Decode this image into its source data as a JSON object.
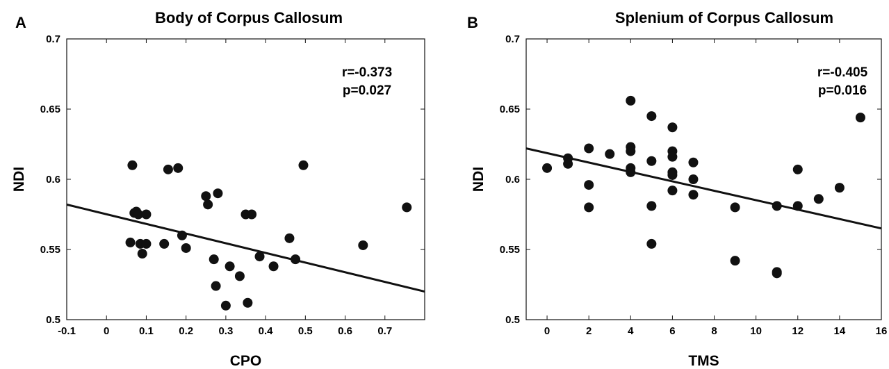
{
  "chart_data": [
    {
      "type": "scatter",
      "panel_label": "A",
      "title": "Body of Corpus Callosum",
      "xlabel": "CPO",
      "ylabel": "NDI",
      "xlim": [
        -0.1,
        0.8
      ],
      "ylim": [
        0.5,
        0.7
      ],
      "xticks": [
        "-0.1",
        "0",
        "0.1",
        "0.2",
        "0.3",
        "0.4",
        "0.5",
        "0.6",
        "0.7"
      ],
      "yticks": [
        "0.5",
        "0.55",
        "0.6",
        "0.65",
        "0.7"
      ],
      "annotation": [
        "r=-0.373",
        "p=0.027"
      ],
      "grid": false,
      "series": [
        {
          "points": [
            [
              0.065,
              0.61
            ],
            [
              0.07,
              0.576
            ],
            [
              0.075,
              0.577
            ],
            [
              0.08,
              0.575
            ],
            [
              0.1,
              0.575
            ],
            [
              0.06,
              0.555
            ],
            [
              0.085,
              0.554
            ],
            [
              0.1,
              0.554
            ],
            [
              0.09,
              0.547
            ],
            [
              0.145,
              0.554
            ],
            [
              0.155,
              0.607
            ],
            [
              0.18,
              0.608
            ],
            [
              0.19,
              0.56
            ],
            [
              0.2,
              0.551
            ],
            [
              0.25,
              0.588
            ],
            [
              0.255,
              0.582
            ],
            [
              0.28,
              0.59
            ],
            [
              0.27,
              0.543
            ],
            [
              0.275,
              0.524
            ],
            [
              0.31,
              0.538
            ],
            [
              0.3,
              0.51
            ],
            [
              0.335,
              0.531
            ],
            [
              0.35,
              0.575
            ],
            [
              0.365,
              0.575
            ],
            [
              0.355,
              0.512
            ],
            [
              0.385,
              0.545
            ],
            [
              0.42,
              0.538
            ],
            [
              0.46,
              0.558
            ],
            [
              0.475,
              0.543
            ],
            [
              0.495,
              0.61
            ],
            [
              0.645,
              0.553
            ],
            [
              0.755,
              0.58
            ]
          ]
        }
      ],
      "fit_line": [
        [
          -0.1,
          0.582
        ],
        [
          0.8,
          0.52
        ]
      ]
    },
    {
      "type": "scatter",
      "panel_label": "B",
      "title": "Splenium of Corpus Callosum",
      "xlabel": "TMS",
      "ylabel": "NDI",
      "xlim": [
        -1,
        16
      ],
      "ylim": [
        0.5,
        0.7
      ],
      "xticks": [
        "0",
        "2",
        "4",
        "6",
        "8",
        "10",
        "12",
        "14",
        "16"
      ],
      "yticks": [
        "0.5",
        "0.55",
        "0.6",
        "0.65",
        "0.7"
      ],
      "annotation": [
        "r=-0.405",
        "p=0.016"
      ],
      "grid": false,
      "series": [
        {
          "points": [
            [
              0,
              0.608
            ],
            [
              1,
              0.615
            ],
            [
              1,
              0.611
            ],
            [
              2,
              0.622
            ],
            [
              2,
              0.596
            ],
            [
              2,
              0.58
            ],
            [
              3,
              0.618
            ],
            [
              4,
              0.656
            ],
            [
              4,
              0.623
            ],
            [
              4,
              0.62
            ],
            [
              4,
              0.608
            ],
            [
              4,
              0.605
            ],
            [
              5,
              0.645
            ],
            [
              5,
              0.613
            ],
            [
              5,
              0.581
            ],
            [
              5,
              0.554
            ],
            [
              6,
              0.637
            ],
            [
              6,
              0.62
            ],
            [
              6,
              0.616
            ],
            [
              6,
              0.605
            ],
            [
              6,
              0.603
            ],
            [
              6,
              0.592
            ],
            [
              7,
              0.612
            ],
            [
              7,
              0.6
            ],
            [
              7,
              0.589
            ],
            [
              9,
              0.58
            ],
            [
              9,
              0.542
            ],
            [
              11,
              0.581
            ],
            [
              11,
              0.534
            ],
            [
              11,
              0.533
            ],
            [
              12,
              0.607
            ],
            [
              12,
              0.581
            ],
            [
              13,
              0.586
            ],
            [
              14,
              0.594
            ],
            [
              15,
              0.644
            ]
          ]
        }
      ],
      "fit_line": [
        [
          -1,
          0.622
        ],
        [
          16,
          0.565
        ]
      ]
    }
  ]
}
